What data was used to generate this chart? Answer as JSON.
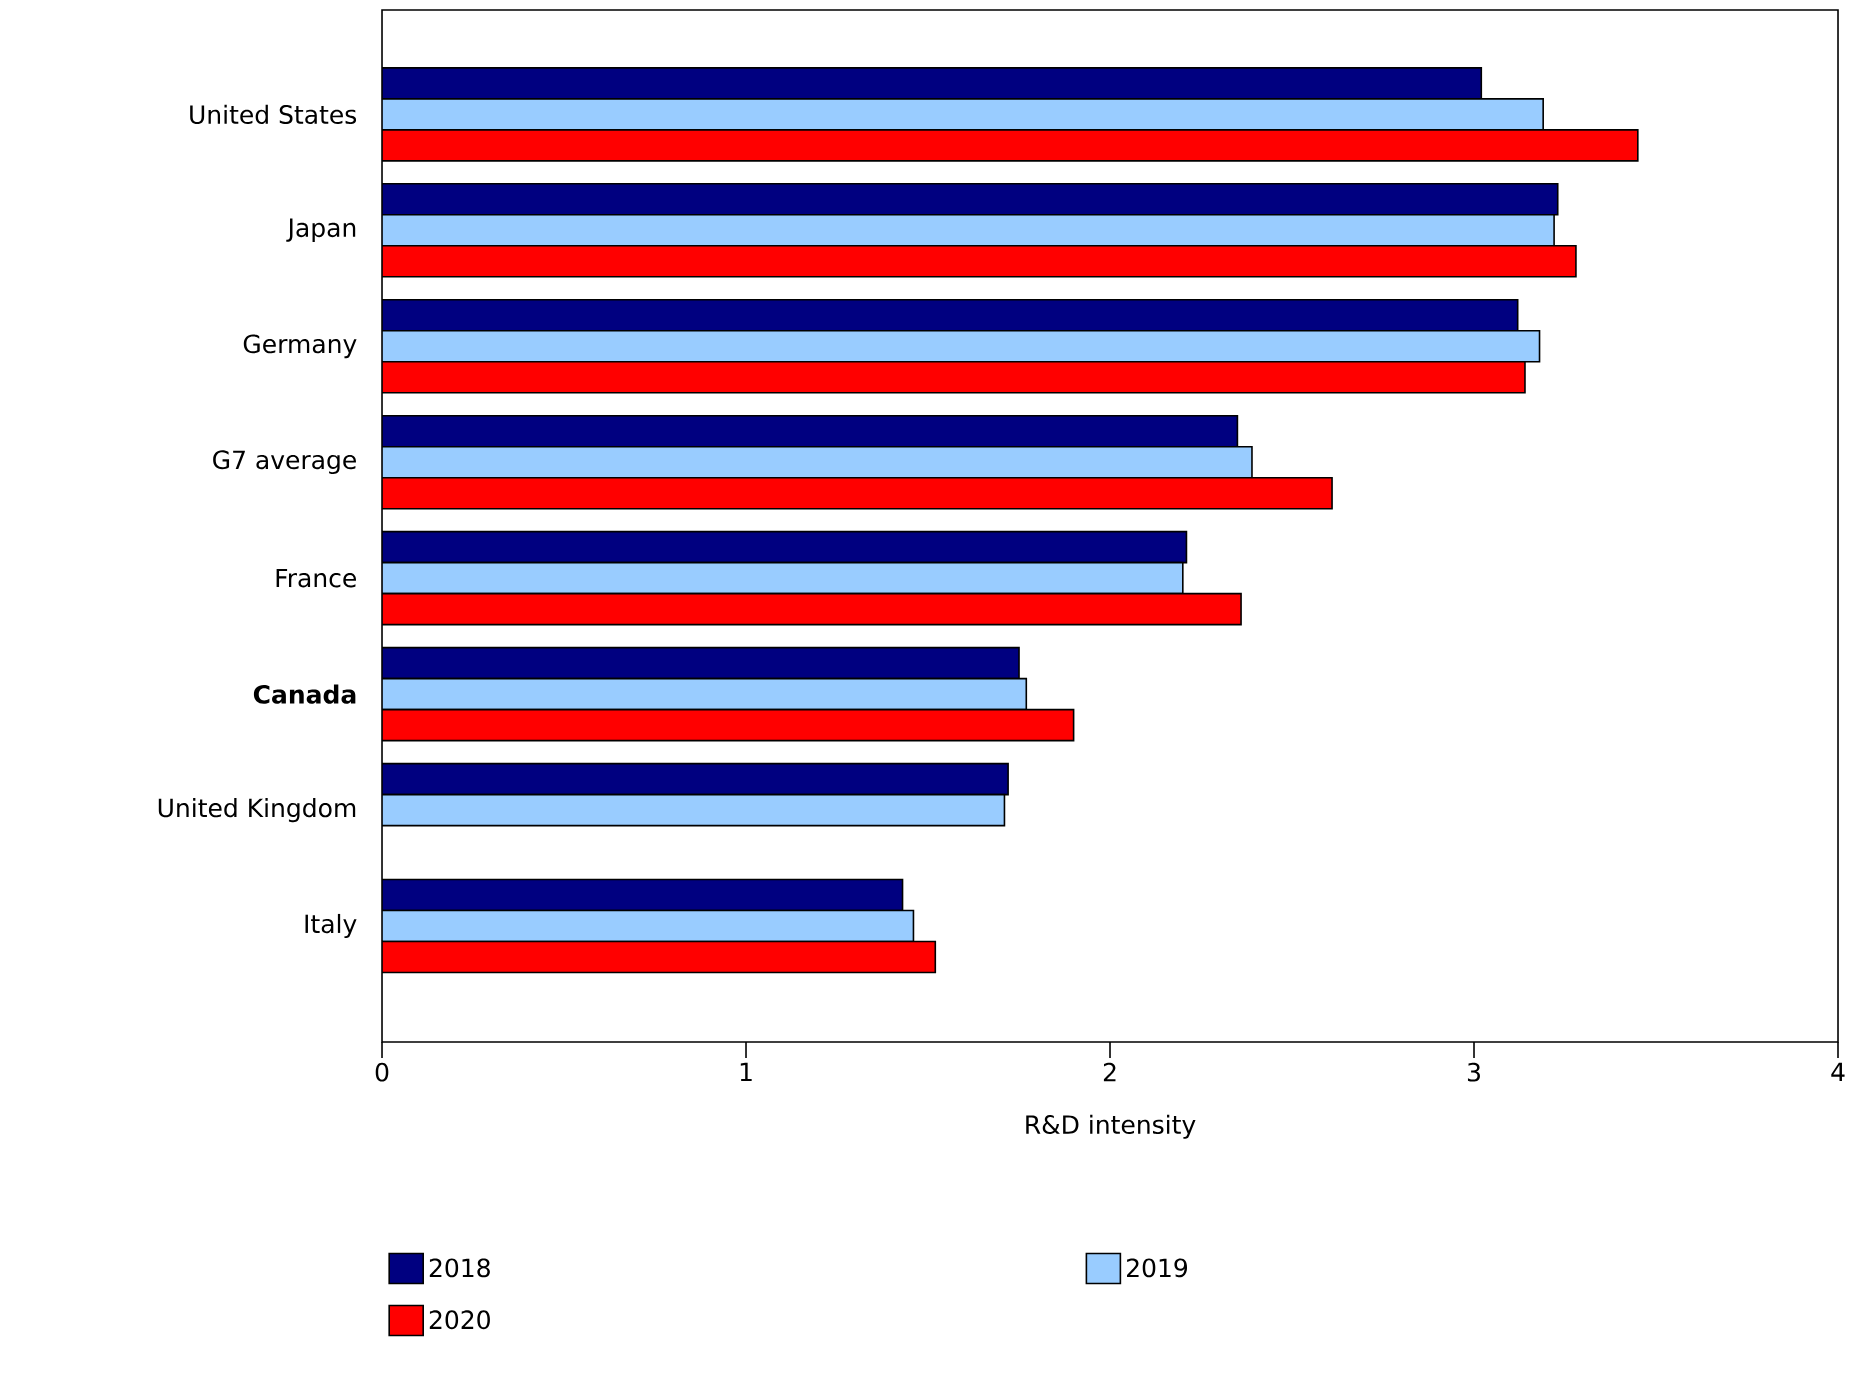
{
  "chart_data": {
    "type": "bar",
    "orientation": "horizontal",
    "xlabel": "R&D intensity",
    "categories": [
      "United States",
      "Japan",
      "Germany",
      "G7 average",
      "France",
      "**Canada**",
      "United Kingdom",
      "Italy"
    ],
    "series": [
      {
        "name": "2018",
        "color": "#000080",
        "values": [
          3.02,
          3.23,
          3.12,
          2.35,
          2.21,
          1.75,
          1.72,
          1.43
        ]
      },
      {
        "name": "2019",
        "color": "#99ccff",
        "values": [
          3.19,
          3.22,
          3.18,
          2.39,
          2.2,
          1.77,
          1.71,
          1.46
        ]
      },
      {
        "name": "2020",
        "color": "#ff0000",
        "values": [
          3.45,
          3.28,
          3.14,
          2.61,
          2.36,
          1.9,
          null,
          1.52
        ]
      }
    ],
    "xlim": [
      0,
      4
    ],
    "xticks": [
      0,
      1,
      2,
      3,
      4
    ],
    "legend": "bottom"
  }
}
